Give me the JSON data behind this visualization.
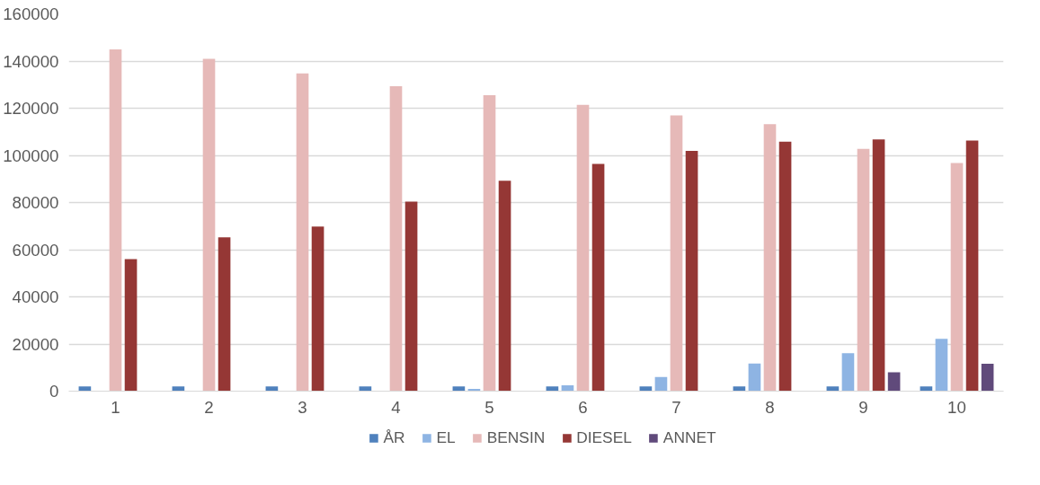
{
  "chart_data": {
    "type": "bar",
    "categories": [
      "1",
      "2",
      "3",
      "4",
      "5",
      "6",
      "7",
      "8",
      "9",
      "10"
    ],
    "series": [
      {
        "name": "ÅR",
        "color": "#4f81bd",
        "values": [
          2000,
          2000,
          2000,
          2000,
          2000,
          2000,
          2000,
          2000,
          2000,
          2000
        ]
      },
      {
        "name": "EL",
        "color": "#8eb4e3",
        "values": [
          0,
          0,
          0,
          null,
          1000,
          2500,
          6000,
          11700,
          16100,
          22200
        ]
      },
      {
        "name": "BENSIN",
        "color": "#e6b9b8",
        "values": [
          145000,
          141000,
          134800,
          129300,
          125500,
          121400,
          117000,
          113200,
          102800,
          96800
        ]
      },
      {
        "name": "DIESEL",
        "color": "#953735",
        "values": [
          56000,
          65200,
          69800,
          80400,
          89200,
          96400,
          101900,
          105800,
          106800,
          106300
        ]
      },
      {
        "name": "ANNET",
        "color": "#604a7b",
        "values": [
          0,
          0,
          0,
          0,
          0,
          0,
          0,
          0,
          8000,
          11600
        ]
      }
    ],
    "ylim": [
      0,
      160000
    ],
    "yticks": [
      0,
      20000,
      40000,
      60000,
      80000,
      100000,
      120000,
      140000,
      160000
    ],
    "grid": "y",
    "legend": "bottom"
  }
}
